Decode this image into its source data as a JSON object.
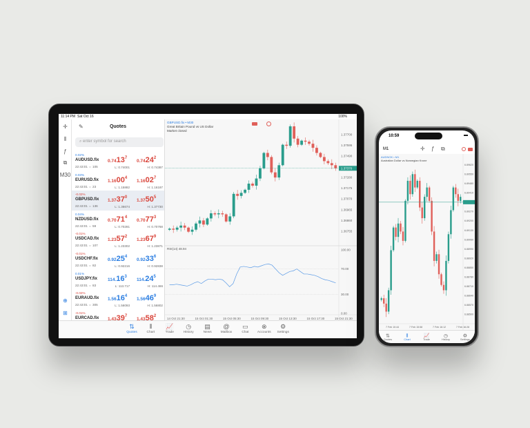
{
  "tablet": {
    "status": {
      "time": "11:14 PM",
      "date": "Sat Oct 16",
      "battery": "100%"
    },
    "rail": [
      {
        "icon": "crosshair-icon",
        "g": "✛"
      },
      {
        "icon": "indicators-icon",
        "g": "⫴"
      },
      {
        "icon": "function-icon",
        "g": "ƒ"
      },
      {
        "icon": "objects-icon",
        "g": "⧉"
      },
      {
        "icon": "timeframe",
        "g": "M30"
      },
      {
        "icon": "zoom-icon",
        "g": "⊕"
      },
      {
        "icon": "add-icon",
        "g": "⊞"
      }
    ],
    "quotes": {
      "title": "Quotes",
      "search_placeholder": "enter symbol for search",
      "rows": [
        {
          "chg": "0.02%",
          "dir": "up",
          "sym": "AUDUSD.fix",
          "time": "22:43:01 ⇔ 105",
          "bid": [
            "0.74",
            "13",
            "7"
          ],
          "ask": [
            "0.74",
            "24",
            "2"
          ],
          "pc": "red",
          "low": "L: 0.74001",
          "high": "H: 0.74387"
        },
        {
          "chg": "0.03%",
          "dir": "up",
          "sym": "EURUSD.fix",
          "time": "22:43:01 ⇔ 23",
          "bid": [
            "1.16",
            "00",
            "4"
          ],
          "ask": [
            "1.16",
            "02",
            "7"
          ],
          "pc": "red",
          "low": "L: 1.15882",
          "high": "H: 1.16187"
        },
        {
          "chg": "-0.02%",
          "dir": "down",
          "sym": "GBPUSD.fix",
          "time": "22:43:01 ⇔ 136",
          "bid": [
            "1.37",
            "37",
            "0"
          ],
          "ask": [
            "1.37",
            "50",
            "5"
          ],
          "pc": "red",
          "low": "L: 1.36674",
          "high": "H: 1.37730",
          "selected": true
        },
        {
          "chg": "0.04%",
          "dir": "up",
          "sym": "NZDUSD.fix",
          "time": "22:43:01 ⇔ 59",
          "bid": [
            "0.70",
            "71",
            "4"
          ],
          "ask": [
            "0.70",
            "77",
            "3"
          ],
          "pc": "red",
          "low": "L: 0.70281",
          "high": "H: 0.70768"
        },
        {
          "chg": "-0.01%",
          "dir": "down",
          "sym": "USDCAD.fix",
          "time": "22:43:01 ⇔ 107",
          "bid": [
            "1.23",
            "57",
            "2"
          ],
          "ask": [
            "1.23",
            "67",
            "9"
          ],
          "pc": "red",
          "low": "L: 1.23302",
          "high": "H: 1.23871"
        },
        {
          "chg": "-0.01%",
          "dir": "down",
          "sym": "USDCHF.fix",
          "time": "22:43:01 ⇔ 82",
          "bid": [
            "0.92",
            "25",
            "4"
          ],
          "ask": [
            "0.92",
            "33",
            "6"
          ],
          "pc": "blue",
          "low": "L: 0.92216",
          "high": "H: 0.92838"
        },
        {
          "chg": "0.01%",
          "dir": "up",
          "sym": "USDJPY.fix",
          "time": "22:43:01 ⇔ 83",
          "bid": [
            "114.",
            "16",
            "3"
          ],
          "ask": [
            "114.",
            "24",
            "5"
          ],
          "pc": "blue",
          "low": "L: 113.717",
          "high": "H: 114.466"
        },
        {
          "chg": "-0.02%",
          "dir": "down",
          "sym": "EURAUD.fix",
          "time": "22:43:01 ⇔ 305",
          "bid": [
            "1.56",
            "16",
            "4"
          ],
          "ask": [
            "1.56",
            "46",
            "9"
          ],
          "pc": "blue",
          "low": "L: 1.56093",
          "high": "H: 1.56802"
        },
        {
          "chg": "-0.01%",
          "dir": "down",
          "sym": "EURCAD.fix",
          "time": "",
          "bid": [
            "1.43",
            "39",
            "7"
          ],
          "ask": [
            "1.43",
            "58",
            "2"
          ],
          "pc": "red",
          "low": "",
          "high": ""
        }
      ]
    },
    "chart": {
      "symbol": "GBPUSD.fix • M30",
      "description": "Great Britain Pound vs US Dollar",
      "state": "Market closed",
      "current": "1.37370",
      "price_ticks": [
        "1.37700",
        "1.37595",
        "1.37490",
        "1.37280",
        "1.37175",
        "1.37070",
        "1.36965",
        "1.36860",
        "1.36755"
      ],
      "price_range": [
        1.3666,
        1.3778
      ],
      "closes": [
        1.3678,
        1.3677,
        1.3679,
        1.3681,
        1.3679,
        1.3675,
        1.3677,
        1.3683,
        1.3686,
        1.3682,
        1.3688,
        1.3693,
        1.3692,
        1.3693,
        1.3692,
        1.3685,
        1.369,
        1.3712,
        1.371,
        1.3713,
        1.3716,
        1.3722,
        1.372,
        1.3727,
        1.3737,
        1.3752,
        1.3748,
        1.3733,
        1.3728,
        1.374,
        1.376,
        1.3759,
        1.3778,
        1.3766,
        1.376,
        1.3764,
        1.3763,
        1.3761,
        1.3757,
        1.3752,
        1.3748,
        1.3744,
        1.3742,
        1.374,
        1.3737
      ],
      "rsi_label": "RSI(14) 48.94",
      "rsi_ticks": [
        "100.00",
        "70.00",
        "30.00",
        "0.00"
      ],
      "rsi": [
        45,
        45,
        46,
        45,
        44,
        43,
        45,
        48,
        50,
        47,
        51,
        54,
        54,
        53,
        54,
        53,
        48,
        42,
        47,
        62,
        73,
        74,
        73,
        72,
        74,
        73,
        75,
        77,
        78,
        76,
        70,
        64,
        60,
        63,
        66,
        67,
        70,
        66,
        62,
        62,
        61,
        60,
        58,
        55,
        53,
        52,
        50,
        48
      ],
      "time_ticks": [
        "14 Oct 21:30",
        "15 Oct 01:30",
        "15 Oct 05:30",
        "15 Oct 09:30",
        "15 Oct 13:30",
        "15 Oct 17:30",
        "15 Oct 21:30"
      ]
    },
    "tabs": [
      {
        "label": "Quotes",
        "g": "⇅",
        "icon": "quotes-icon",
        "active": true
      },
      {
        "label": "Chart",
        "g": "⫴",
        "icon": "chart-icon"
      },
      {
        "label": "Trade",
        "g": "📈",
        "icon": "trade-icon"
      },
      {
        "label": "History",
        "g": "◷",
        "icon": "history-icon"
      },
      {
        "label": "News",
        "g": "▤",
        "icon": "news-icon"
      },
      {
        "label": "Mailbox",
        "g": "@",
        "icon": "mailbox-icon"
      },
      {
        "label": "Chat",
        "g": "▭",
        "icon": "chat-icon"
      },
      {
        "label": "Accounts",
        "g": "⊗",
        "icon": "accounts-icon"
      },
      {
        "label": "Settings",
        "g": "⚙",
        "icon": "settings-icon"
      }
    ]
  },
  "phone": {
    "status": {
      "time": "10:59"
    },
    "timeframe": "M1",
    "chart": {
      "symbol": "AUDNOK • M1",
      "description": "Australian Dollar vs Norwegian Krone",
      "price_ticks": [
        "6.89620",
        "6.89550",
        "6.89480",
        "6.89410",
        "6.89270",
        "6.89200",
        "6.89130",
        "6.89060",
        "6.88990",
        "6.88920",
        "6.88850",
        "6.88780",
        "6.88710",
        "6.88640",
        "6.88570",
        "6.88500"
      ],
      "price_range": [
        6.8846,
        6.8966
      ],
      "closes": [
        6.8862,
        6.8858,
        6.8852,
        6.8868,
        6.8898,
        6.8915,
        6.8908,
        6.8918,
        6.8912,
        6.8905,
        6.8935,
        6.895,
        6.894,
        6.8955,
        6.8945,
        6.895,
        6.893,
        6.8922,
        6.8938,
        6.8945,
        6.8935,
        6.8912,
        6.889,
        6.8895,
        6.888,
        6.8872,
        6.8868,
        6.889,
        6.891,
        6.8928,
        6.8945,
        6.894,
        6.8935,
        6.8938
      ],
      "time_ticks": [
        "7 Feb 10:44",
        "7 Feb 15:58",
        "7 Feb 16:12",
        "7 Feb 16:28"
      ]
    },
    "tabs": [
      {
        "label": "Quotes",
        "g": "⇅",
        "icon": "quotes-icon"
      },
      {
        "label": "Chart",
        "g": "⫴",
        "icon": "chart-icon",
        "active": true
      },
      {
        "label": "Trade",
        "g": "📈",
        "icon": "trade-icon"
      },
      {
        "label": "History",
        "g": "◷",
        "icon": "history-icon"
      },
      {
        "label": "Settings",
        "g": "⚙",
        "icon": "settings-icon"
      }
    ]
  },
  "colors": {
    "up": "#2a9d8c",
    "down": "#e0605a",
    "blue": "#2a7de1",
    "red": "#d9443a",
    "rsi": "#5b9be6"
  }
}
